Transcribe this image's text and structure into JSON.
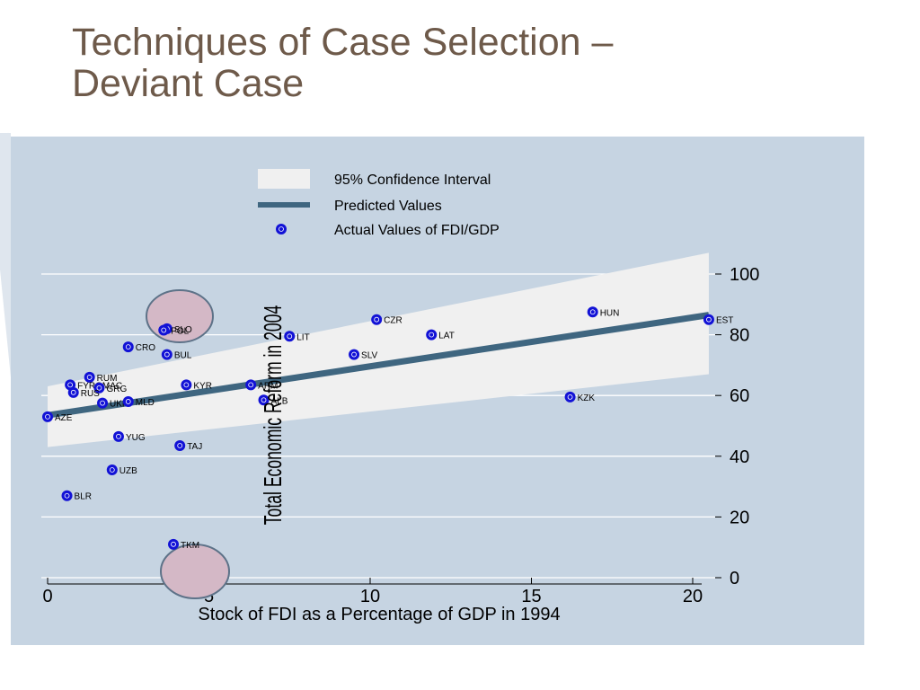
{
  "slide": {
    "title_line1": "Techniques of Case Selection –",
    "title_line2": "Deviant Case"
  },
  "colors": {
    "title": "#6e5a4a",
    "plot_background": "#c6d4e2",
    "confidence_band": "#f0f0f0",
    "prediction_line": "#3f6680",
    "points": "#1212d6",
    "highlight_circle": "#d4b8c6"
  },
  "chart_data": {
    "type": "scatter",
    "xlabel": "Stock of FDI as a Percentage of GDP in 1994",
    "ylabel": "Total Economic Reform in 2004",
    "xlim": [
      0,
      20
    ],
    "ylim": [
      0,
      100
    ],
    "x_ticks": [
      "0",
      "5",
      "10",
      "15",
      "20"
    ],
    "y_ticks": [
      "0",
      "20",
      "40",
      "60",
      "80",
      "100"
    ],
    "y_axis_side": "right",
    "grid": true,
    "legend_position": "top-center",
    "legend": [
      "95% Confidence Interval",
      "Predicted Values",
      "Actual Values of FDI/GDP"
    ],
    "fit_line": {
      "x": [
        0,
        20.5
      ],
      "y": [
        53.5,
        86.5
      ]
    },
    "confidence_band": {
      "x": [
        0,
        20.5
      ],
      "upper": [
        63,
        107
      ],
      "lower": [
        43,
        67
      ]
    },
    "points": [
      {
        "label": "SLO",
        "x": 3.7,
        "y": 82
      },
      {
        "label": "POL",
        "x": 3.6,
        "y": 81.5
      },
      {
        "label": "CRO",
        "x": 2.5,
        "y": 76
      },
      {
        "label": "BUL",
        "x": 3.7,
        "y": 73.5
      },
      {
        "label": "RUM",
        "x": 1.3,
        "y": 66
      },
      {
        "label": "FYROMAC",
        "x": 0.7,
        "y": 63.5
      },
      {
        "label": "GRG",
        "x": 1.6,
        "y": 62.5
      },
      {
        "label": "RUS",
        "x": 0.8,
        "y": 61
      },
      {
        "label": "UKR",
        "x": 1.7,
        "y": 57.5
      },
      {
        "label": "MLD",
        "x": 2.5,
        "y": 58
      },
      {
        "label": "AZE",
        "x": 0.0,
        "y": 53
      },
      {
        "label": "KYR",
        "x": 4.3,
        "y": 63.5
      },
      {
        "label": "ARM",
        "x": 6.3,
        "y": 63.5
      },
      {
        "label": "ALB",
        "x": 6.7,
        "y": 58.5
      },
      {
        "label": "YUG",
        "x": 2.2,
        "y": 46.5
      },
      {
        "label": "TAJ",
        "x": 4.1,
        "y": 43.5
      },
      {
        "label": "UZB",
        "x": 2.0,
        "y": 35.5
      },
      {
        "label": "BLR",
        "x": 0.6,
        "y": 27
      },
      {
        "label": "TKM",
        "x": 3.9,
        "y": 11
      },
      {
        "label": "LIT",
        "x": 7.5,
        "y": 79.5
      },
      {
        "label": "CZR",
        "x": 10.2,
        "y": 85
      },
      {
        "label": "LAT",
        "x": 11.9,
        "y": 80
      },
      {
        "label": "SLV",
        "x": 9.5,
        "y": 73.5
      },
      {
        "label": "HUN",
        "x": 16.9,
        "y": 87.5
      },
      {
        "label": "EST",
        "x": 20.5,
        "y": 85
      },
      {
        "label": "KZK",
        "x": 16.2,
        "y": 59.5
      }
    ],
    "highlighted": [
      "SLO",
      "TKM"
    ]
  }
}
